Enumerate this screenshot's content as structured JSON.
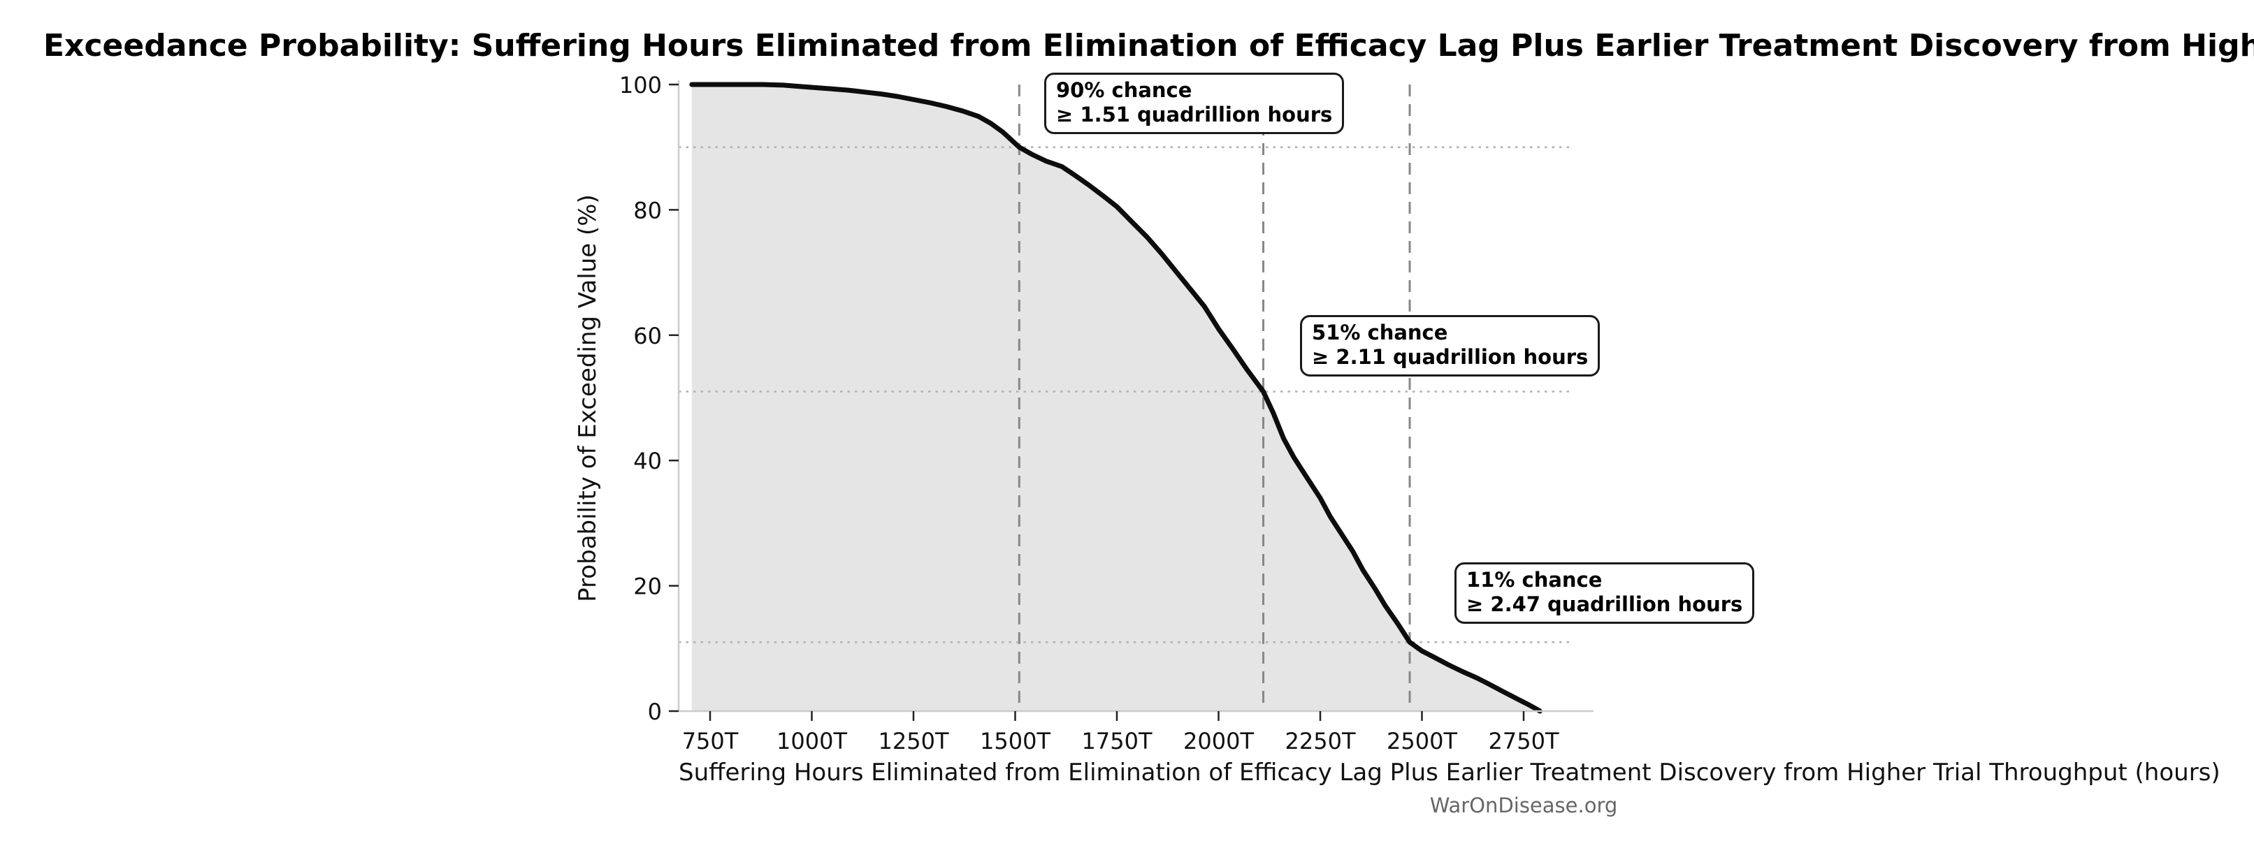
{
  "watermark": "WarOnDisease.org",
  "chart_data": {
    "type": "area",
    "title": "Exceedance Probability: Suffering Hours Eliminated from Elimination of Efficacy Lag Plus Earlier Treatment Discovery from Higher Trial Throughput",
    "xlabel": "Suffering Hours Eliminated from Elimination of Efficacy Lag Plus Earlier Treatment Discovery from Higher Trial Throughput (hours)",
    "ylabel": "Probability of Exceeding Value (%)",
    "x_tick_unit": "T",
    "x_ticks": [
      750,
      1000,
      1250,
      1500,
      1750,
      2000,
      2250,
      2500,
      2750
    ],
    "y_ticks": [
      0,
      20,
      40,
      60,
      80,
      100
    ],
    "xlim_trillions": [
      673,
      2922
    ],
    "ylim_percent": [
      0,
      100
    ],
    "grid": "dotted horizontal lines at annotated probabilities; dashed vertical lines at annotated values",
    "legend": "none",
    "curve_x_unit": "trillion hours",
    "curve": [
      [
        705,
        100
      ],
      [
        760,
        100
      ],
      [
        820,
        100
      ],
      [
        880,
        100
      ],
      [
        930,
        99.9
      ],
      [
        970,
        99.7
      ],
      [
        1010,
        99.5
      ],
      [
        1050,
        99.3
      ],
      [
        1090,
        99.1
      ],
      [
        1130,
        98.8
      ],
      [
        1170,
        98.5
      ],
      [
        1210,
        98.1
      ],
      [
        1250,
        97.6
      ],
      [
        1290,
        97.1
      ],
      [
        1330,
        96.5
      ],
      [
        1370,
        95.8
      ],
      [
        1410,
        94.9
      ],
      [
        1440,
        93.8
      ],
      [
        1470,
        92.4
      ],
      [
        1510,
        90
      ],
      [
        1540,
        88.9
      ],
      [
        1575,
        87.8
      ],
      [
        1615,
        86.9
      ],
      [
        1645,
        85.6
      ],
      [
        1680,
        84
      ],
      [
        1715,
        82.3
      ],
      [
        1750,
        80.5
      ],
      [
        1785,
        78.2
      ],
      [
        1825,
        75.6
      ],
      [
        1860,
        73
      ],
      [
        1900,
        69.8
      ],
      [
        1935,
        67
      ],
      [
        1965,
        64.6
      ],
      [
        2000,
        61
      ],
      [
        2035,
        57.8
      ],
      [
        2070,
        54.5
      ],
      [
        2110,
        51
      ],
      [
        2135,
        47.5
      ],
      [
        2160,
        43.5
      ],
      [
        2185,
        40.5
      ],
      [
        2215,
        37.5
      ],
      [
        2250,
        34
      ],
      [
        2275,
        31
      ],
      [
        2300,
        28.5
      ],
      [
        2330,
        25.5
      ],
      [
        2355,
        22.5
      ],
      [
        2385,
        19.5
      ],
      [
        2410,
        16.8
      ],
      [
        2440,
        14
      ],
      [
        2470,
        11
      ],
      [
        2500,
        9.6
      ],
      [
        2530,
        8.6
      ],
      [
        2565,
        7.4
      ],
      [
        2600,
        6.3
      ],
      [
        2635,
        5.3
      ],
      [
        2665,
        4.3
      ],
      [
        2700,
        3.1
      ],
      [
        2730,
        2.1
      ],
      [
        2760,
        1.1
      ],
      [
        2785,
        0.2
      ],
      [
        2790,
        0
      ]
    ],
    "annotations": [
      {
        "prob_percent": 90,
        "value_trillions": 1510,
        "line1": "90% chance",
        "line2": "≥ 1.51 quadrillion hours"
      },
      {
        "prob_percent": 51,
        "value_trillions": 2110,
        "line1": "51% chance",
        "line2": "≥ 2.11 quadrillion hours"
      },
      {
        "prob_percent": 11,
        "value_trillions": 2470,
        "line1": "11% chance",
        "line2": "≥ 2.47 quadrillion hours"
      }
    ],
    "colors": {
      "curve": "#0d0d0d",
      "fill": "#e5e5e6",
      "dashed_line": "#878787",
      "dotted_line": "#b3b3b3",
      "spine": "#cccccc",
      "tick_mark": "#222222",
      "tick_label": "#111111",
      "watermark": "#666666",
      "annotation_border": "#1a1a1a",
      "background": "#ffffff"
    }
  }
}
